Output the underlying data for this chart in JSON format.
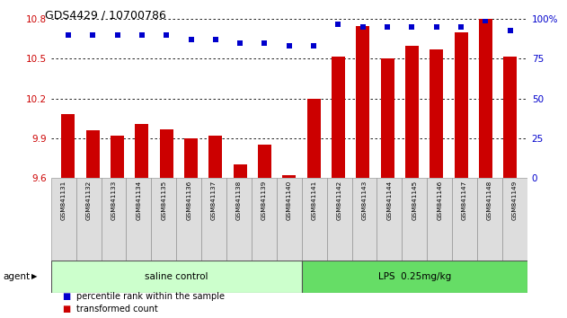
{
  "title": "GDS4429 / 10700786",
  "samples": [
    "GSM841131",
    "GSM841132",
    "GSM841133",
    "GSM841134",
    "GSM841135",
    "GSM841136",
    "GSM841137",
    "GSM841138",
    "GSM841139",
    "GSM841140",
    "GSM841141",
    "GSM841142",
    "GSM841143",
    "GSM841144",
    "GSM841145",
    "GSM841146",
    "GSM841147",
    "GSM841148",
    "GSM841149"
  ],
  "transformed_count": [
    10.08,
    9.96,
    9.92,
    10.01,
    9.97,
    9.9,
    9.92,
    9.7,
    9.85,
    9.62,
    10.2,
    10.52,
    10.75,
    10.5,
    10.6,
    10.57,
    10.7,
    10.8,
    10.52
  ],
  "percentile_rank": [
    90,
    90,
    90,
    90,
    90,
    87,
    87,
    85,
    85,
    83,
    83,
    97,
    95,
    95,
    95,
    95,
    95,
    99,
    93
  ],
  "group1_count": 10,
  "group1_label": "saline control",
  "group2_label": "LPS  0.25mg/kg",
  "group1_color": "#ccffcc",
  "group2_color": "#66dd66",
  "bar_color": "#cc0000",
  "dot_color": "#0000cc",
  "ylim_left": [
    9.6,
    10.8
  ],
  "ylim_right": [
    0,
    100
  ],
  "yticks_left": [
    9.6,
    9.9,
    10.2,
    10.5,
    10.8
  ],
  "yticks_right": [
    0,
    25,
    50,
    75,
    100
  ],
  "agent_label": "agent",
  "legend_bar_label": "transformed count",
  "legend_dot_label": "percentile rank within the sample"
}
